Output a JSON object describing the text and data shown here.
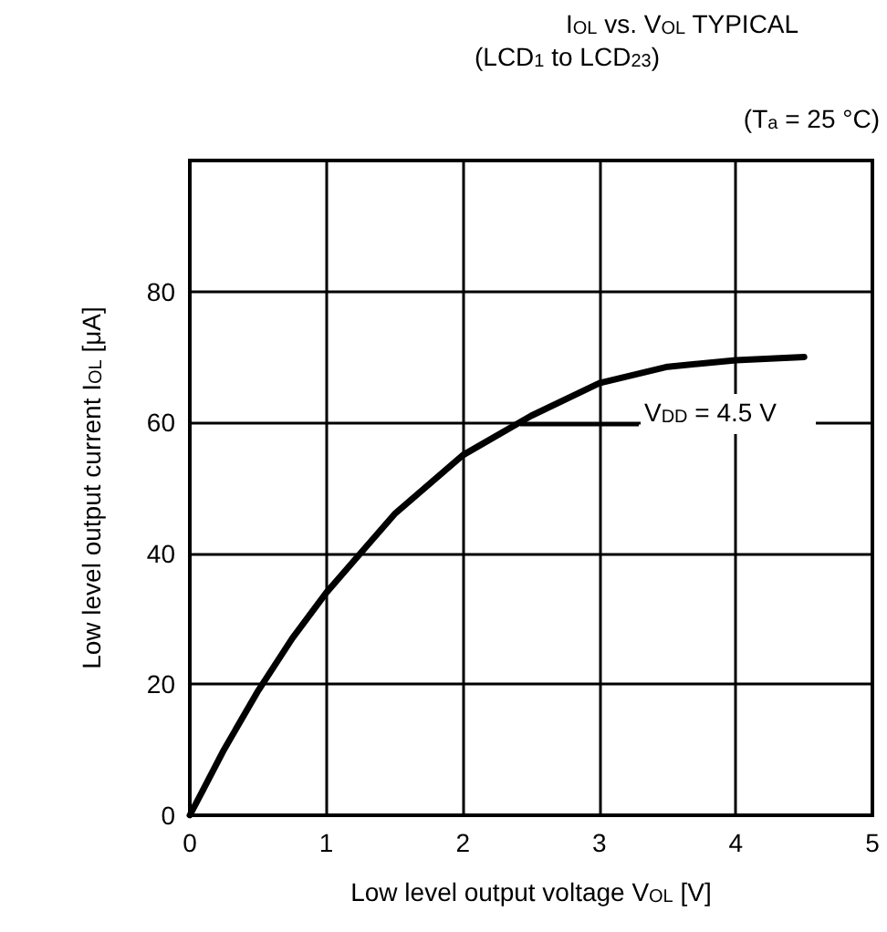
{
  "chart_data": {
    "type": "line",
    "title": "I$_{OL}$ vs. V$_{OL}$ TYPICAL",
    "subtitle": "(LCD$_{1}$ to LCD$_{23}$)",
    "xlabel": "Low level output voltage V$_{OL}$ [V]",
    "ylabel": "Low level output current I$_{OL}$ [μA]",
    "annotations": [
      "(T$_{a}$ = 25 °C)",
      "V$_{DD}$ = 4.5 V"
    ],
    "series": [
      {
        "color": "#000000",
        "x": [
          0,
          0.1,
          0.25,
          0.5,
          0.75,
          1,
          1.25,
          1.5,
          2,
          2.5,
          3,
          3.5,
          4,
          4.5
        ],
        "values": [
          0,
          4,
          10,
          19,
          27,
          34,
          40,
          46,
          55,
          61,
          66,
          68.5,
          69.5,
          70
        ]
      }
    ],
    "xlim": [
      0,
      5
    ],
    "xticks": [
      0,
      1,
      2,
      3,
      4,
      5
    ],
    "ylim": [
      0,
      100
    ],
    "yticks": [
      0,
      20,
      40,
      60,
      80,
      {
        "value": 100,
        "label": null
      }
    ],
    "grid": true,
    "marker": "none",
    "line_style": "solid"
  }
}
